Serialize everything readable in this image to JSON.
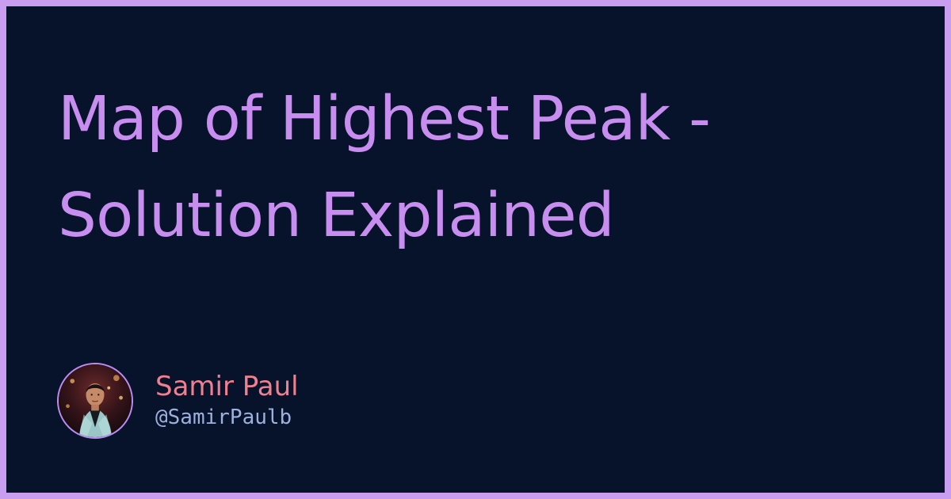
{
  "title": {
    "line1": "Map of Highest Peak -",
    "line2": "Solution Explained"
  },
  "author": {
    "name": "Samir Paul",
    "handle": "@SamirPaulb",
    "avatar_icon": "person-portrait-icon"
  },
  "colors": {
    "frame": "#c99ef0",
    "background": "#07132a",
    "title": "#c78ef0",
    "author_name": "#f07f8f",
    "author_handle": "#9fb0dd",
    "avatar_border": "#bc8cf0"
  }
}
